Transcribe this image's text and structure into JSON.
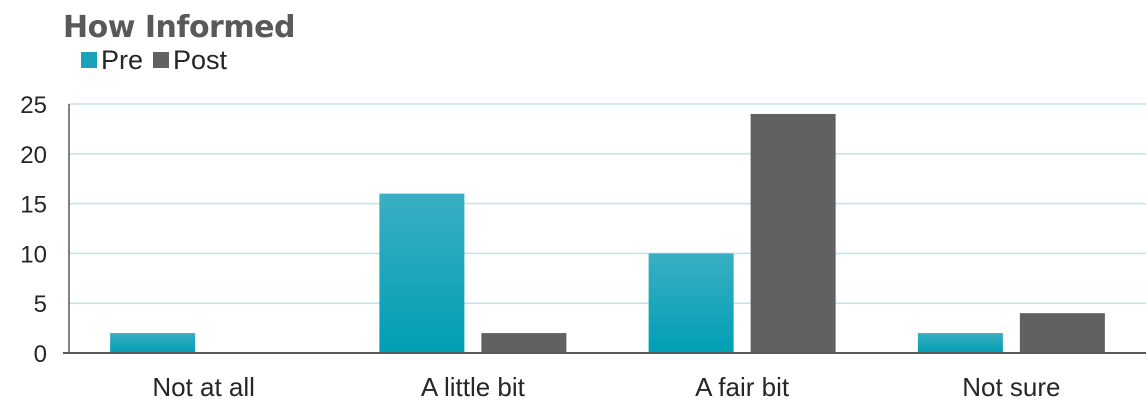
{
  "chart_data": {
    "type": "bar",
    "title": "How Informed",
    "categories": [
      "Not at all",
      "A little bit",
      "A fair bit",
      "Not sure"
    ],
    "series": [
      {
        "name": "Pre",
        "values": [
          2,
          16,
          10,
          2
        ],
        "color": "#1aa3b8"
      },
      {
        "name": "Post",
        "values": [
          0,
          2,
          24,
          4
        ],
        "color": "#616161"
      }
    ],
    "ylim": [
      0,
      25
    ],
    "yticks": [
      "0",
      "5",
      "10",
      "15",
      "20",
      "25"
    ],
    "grid": true,
    "legend_position": "top-left"
  }
}
